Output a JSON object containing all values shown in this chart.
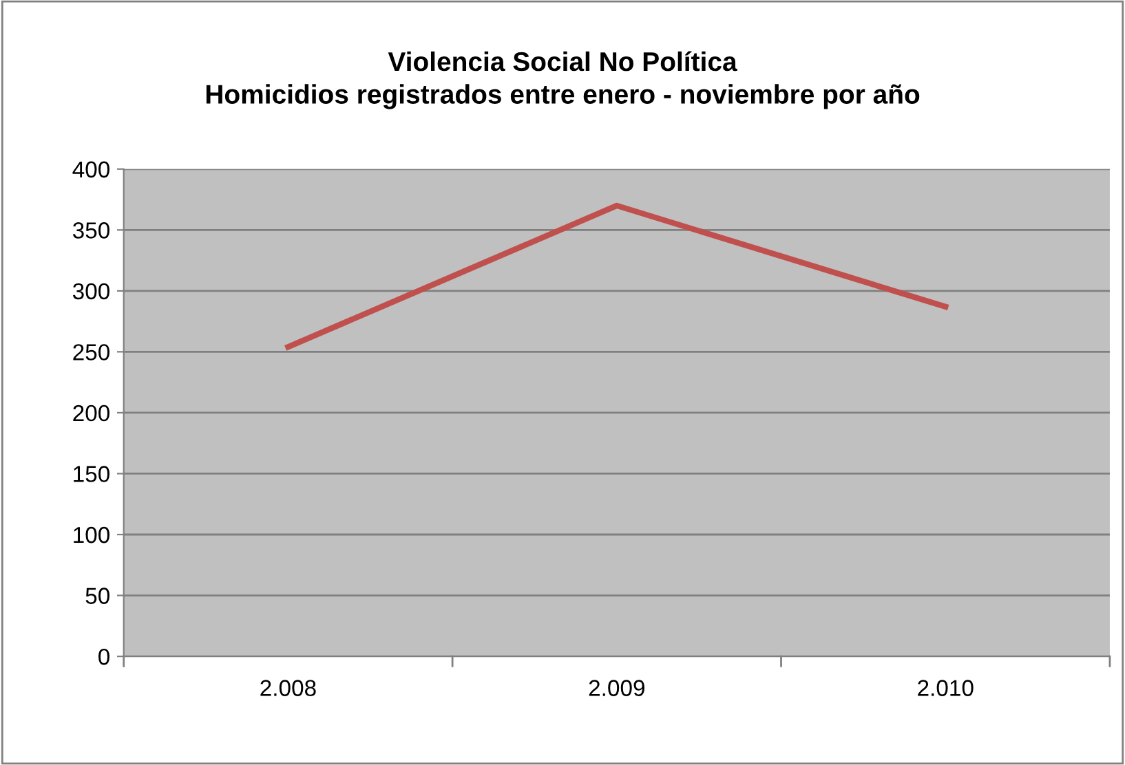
{
  "chart_data": {
    "type": "line",
    "title": "Violencia Social No Política\nHomicidios registrados entre enero - noviembre por año",
    "categories": [
      "2.008",
      "2.009",
      "2.010"
    ],
    "series": [
      {
        "color": "#c0504d",
        "values": [
          254,
          370,
          287
        ]
      }
    ],
    "ylim": [
      0,
      400
    ],
    "yticks": [
      0,
      50,
      100,
      150,
      200,
      250,
      300,
      350,
      400
    ],
    "grid": "y",
    "marker": "none",
    "line_style": "solid"
  }
}
